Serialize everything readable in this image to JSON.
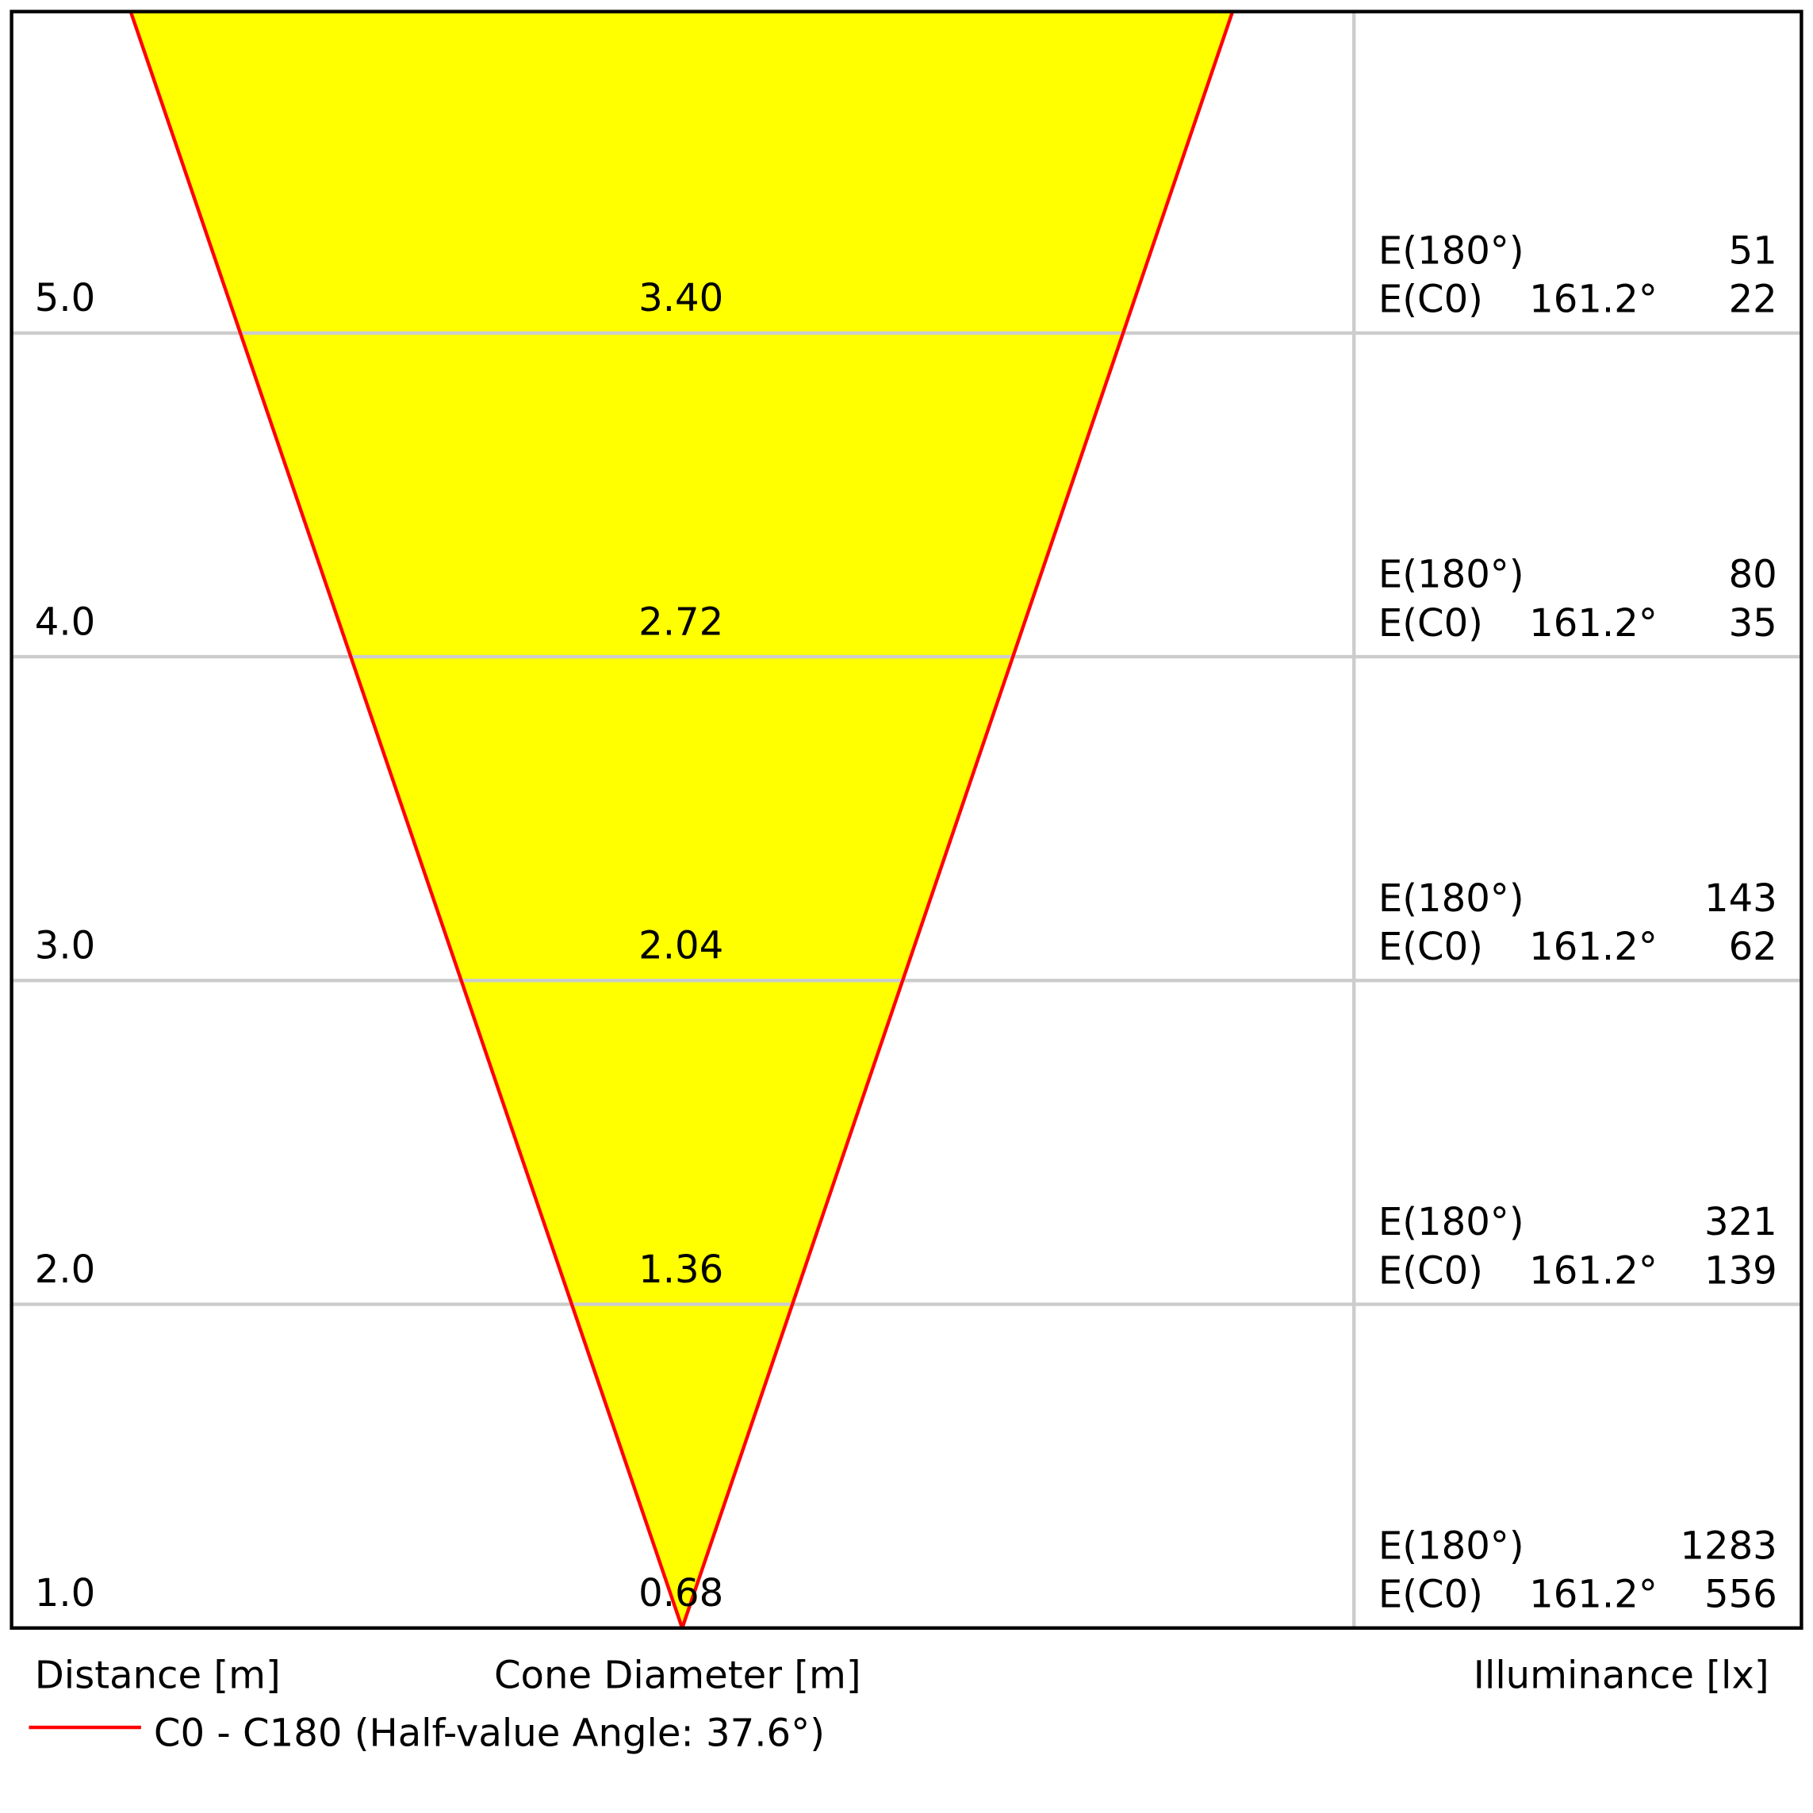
{
  "rows": [
    {
      "distance": "5.0",
      "diameter": "3.40",
      "e180_label": "E(180°)",
      "e180": "51",
      "ec0_label": "E(C0)",
      "ec0_angle": "161.2°",
      "ec0": "22"
    },
    {
      "distance": "4.0",
      "diameter": "2.72",
      "e180_label": "E(180°)",
      "e180": "80",
      "ec0_label": "E(C0)",
      "ec0_angle": "161.2°",
      "ec0": "35"
    },
    {
      "distance": "3.0",
      "diameter": "2.04",
      "e180_label": "E(180°)",
      "e180": "143",
      "ec0_label": "E(C0)",
      "ec0_angle": "161.2°",
      "ec0": "62"
    },
    {
      "distance": "2.0",
      "diameter": "1.36",
      "e180_label": "E(180°)",
      "e180": "321",
      "ec0_label": "E(C0)",
      "ec0_angle": "161.2°",
      "ec0": "139"
    },
    {
      "distance": "1.0",
      "diameter": "0.68",
      "e180_label": "E(180°)",
      "e180": "1283",
      "ec0_label": "E(C0)",
      "ec0_angle": "161.2°",
      "ec0": "556"
    }
  ],
  "footer": {
    "distance": "Distance [m]",
    "diameter": "Cone Diameter [m]",
    "illuminance": "Illuminance [lx]"
  },
  "legend": {
    "label": "C0 - C180 (Half-value Angle: 37.6°)"
  }
}
